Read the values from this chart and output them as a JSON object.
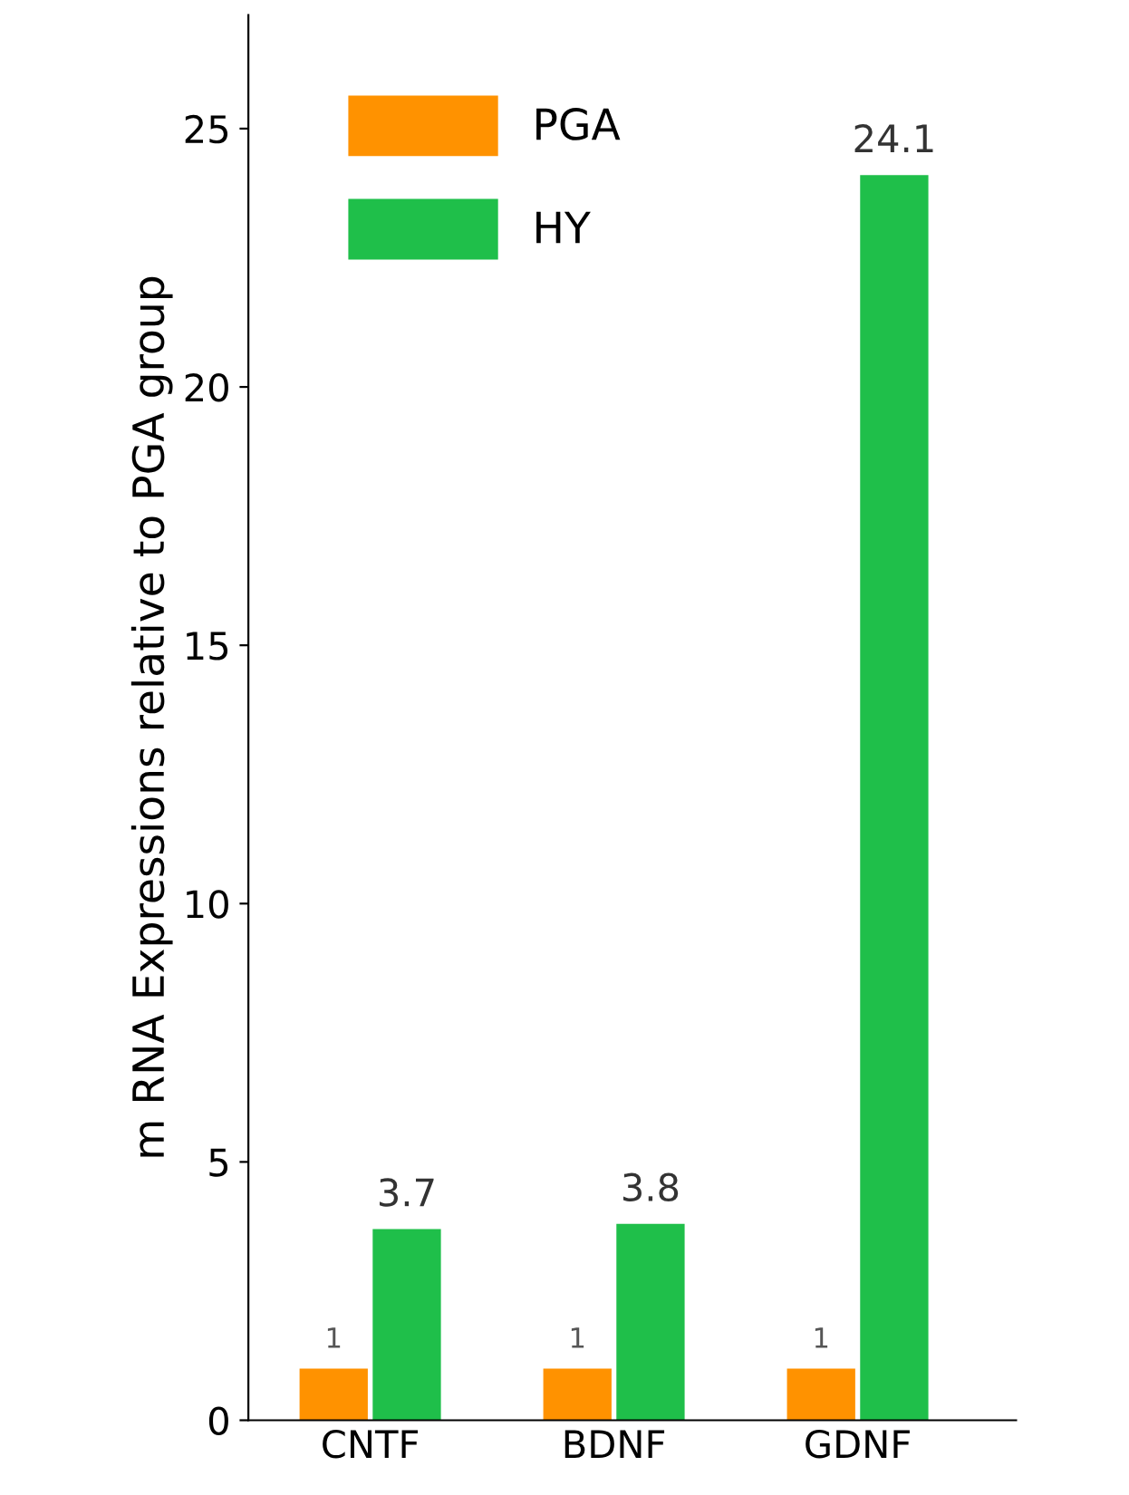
{
  "chart_data": {
    "type": "bar",
    "ylabel": "m RNA Expressions relative to PGA group",
    "categories": [
      "CNTF",
      "BDNF",
      "GDNF"
    ],
    "series": [
      {
        "name": "PGA",
        "color": "#ff9200",
        "values": [
          1,
          1,
          1
        ],
        "value_labels": [
          "1",
          "1",
          "1"
        ]
      },
      {
        "name": "HY",
        "color": "#1fbf4a",
        "values": [
          3.7,
          3.8,
          24.1
        ],
        "value_labels": [
          "3.7",
          "3.8",
          "24.1"
        ]
      }
    ],
    "ylim": [
      0,
      27.2
    ],
    "yticks": [
      0,
      5,
      10,
      15,
      20,
      25
    ],
    "grid": false,
    "legend": "top left"
  }
}
